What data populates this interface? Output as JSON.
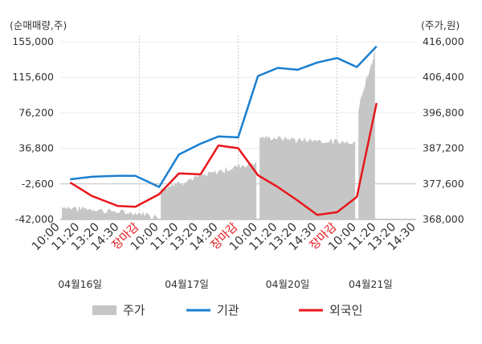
{
  "chart_data": {
    "type": "line",
    "left_axis_unit": "(순매매량,주)",
    "right_axis_unit": "(주가,원)",
    "left_ticks": [
      "155,000",
      "115,600",
      "76,200",
      "36,800",
      "-2,600",
      "-42,000"
    ],
    "right_ticks": [
      "416,000",
      "406,400",
      "396,800",
      "387,200",
      "377,600",
      "368,000"
    ],
    "ylim_left": [
      -42000,
      155000
    ],
    "ylim_right": [
      368000,
      416000
    ],
    "x_tick_labels": [
      {
        "text": "10:00",
        "close": false
      },
      {
        "text": "11:20",
        "close": false
      },
      {
        "text": "13:20",
        "close": false
      },
      {
        "text": "14:30",
        "close": false
      },
      {
        "text": "장마감",
        "close": true
      },
      {
        "text": "10:00",
        "close": false
      },
      {
        "text": "11:20",
        "close": false
      },
      {
        "text": "13:20",
        "close": false
      },
      {
        "text": "14:30",
        "close": false
      },
      {
        "text": "장마감",
        "close": true
      },
      {
        "text": "10:00",
        "close": false
      },
      {
        "text": "11:20",
        "close": false
      },
      {
        "text": "13:20",
        "close": false
      },
      {
        "text": "14:30",
        "close": false
      },
      {
        "text": "장마감",
        "close": true
      },
      {
        "text": "10:00",
        "close": false
      },
      {
        "text": "11:20",
        "close": false
      },
      {
        "text": "13:20",
        "close": false
      },
      {
        "text": "14:30",
        "close": false
      }
    ],
    "dates": [
      "04월16일",
      "04월17일",
      "04월20일",
      "04월21일"
    ],
    "series": [
      {
        "name": "기관",
        "color": "#1a7fd0",
        "axis": "left",
        "points": [
          [
            0.5,
            2500
          ],
          [
            1.6,
            5300
          ],
          [
            2.9,
            6400
          ],
          [
            3.8,
            6400
          ],
          [
            5,
            -6000
          ],
          [
            6,
            30000
          ],
          [
            7.1,
            42000
          ],
          [
            8,
            50000
          ],
          [
            9,
            49000
          ],
          [
            10,
            117000
          ],
          [
            11,
            126000
          ],
          [
            12,
            124000
          ],
          [
            13,
            132000
          ],
          [
            14,
            137000
          ],
          [
            15,
            127000
          ],
          [
            16,
            150000
          ]
        ]
      },
      {
        "name": "외국인",
        "color": "#e8161b",
        "axis": "left",
        "points": [
          [
            0.5,
            -1000
          ],
          [
            1.6,
            -16000
          ],
          [
            2.9,
            -27000
          ],
          [
            3.8,
            -28000
          ],
          [
            5,
            -14000
          ],
          [
            6,
            9000
          ],
          [
            7.1,
            8000
          ],
          [
            8,
            40000
          ],
          [
            9,
            37000
          ],
          [
            10,
            7000
          ],
          [
            11,
            -6000
          ],
          [
            12,
            -21000
          ],
          [
            13,
            -37000
          ],
          [
            14,
            -34000
          ],
          [
            15,
            -17000
          ],
          [
            16,
            87000
          ]
        ]
      }
    ],
    "price": {
      "name": "주가",
      "color": "#c6c6c6",
      "axis": "right",
      "segments": [
        {
          "x0": 0,
          "x1": 5,
          "start": 371500,
          "end": 369200,
          "amp": 0.7,
          "dip": 0.8
        },
        {
          "x0": 5,
          "x1": 10,
          "start": 376800,
          "end": 383700,
          "amp": 0.8,
          "dip": 0.6
        },
        {
          "x0": 10,
          "x1": 15,
          "start": 390200,
          "end": 388900,
          "amp": 0.7,
          "dip": 0.6
        },
        {
          "x0": 15,
          "x1": 16,
          "start": 398500,
          "end": 413500,
          "amp": 1.0,
          "dip": 0.5
        }
      ]
    }
  },
  "legend": [
    {
      "label": "주가",
      "color": "#c6c6c6",
      "kind": "box"
    },
    {
      "label": "기관",
      "color": "#1a7fd0",
      "kind": "line"
    },
    {
      "label": "외국인",
      "color": "#e8161b",
      "kind": "line"
    }
  ]
}
